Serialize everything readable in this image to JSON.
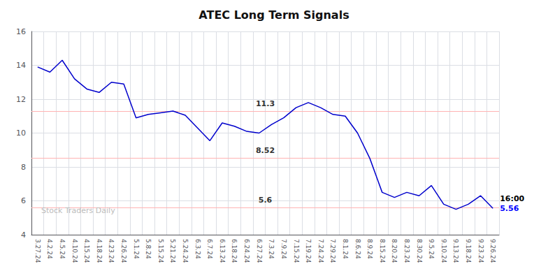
{
  "chart_data": {
    "type": "line",
    "title": "ATEC Long Term Signals",
    "categories": [
      "3.27.24",
      "4.2.24",
      "4.5.24",
      "4.10.24",
      "4.15.24",
      "4.18.24",
      "4.23.24",
      "4.26.24",
      "5.1.24",
      "5.8.24",
      "5.15.24",
      "5.21.24",
      "5.24.24",
      "6.3.24",
      "6.7.24",
      "6.13.24",
      "6.18.24",
      "6.24.24",
      "6.27.24",
      "7.3.24",
      "7.9.24",
      "7.15.24",
      "7.19.24",
      "7.24.24",
      "7.29.24",
      "8.1.24",
      "8.6.24",
      "8.9.24",
      "8.15.24",
      "8.20.24",
      "8.23.24",
      "8.30.24",
      "9.5.24",
      "9.10.24",
      "9.13.24",
      "9.18.24",
      "9.23.24",
      "9.26.24"
    ],
    "values": [
      13.9,
      13.6,
      14.3,
      13.2,
      12.6,
      12.4,
      13.0,
      12.9,
      10.9,
      11.1,
      11.2,
      11.3,
      11.05,
      10.3,
      9.55,
      10.6,
      10.4,
      10.1,
      10.0,
      10.5,
      10.9,
      11.5,
      11.8,
      11.5,
      11.1,
      11.0,
      10.0,
      8.5,
      6.5,
      6.2,
      6.5,
      6.3,
      6.9,
      5.8,
      5.5,
      5.8,
      6.3,
      5.56
    ],
    "color": "#0000cc",
    "ylim": [
      4,
      16
    ],
    "yticks": [
      4,
      6,
      8,
      10,
      12,
      14,
      16
    ],
    "grid": true,
    "reference_lines": [
      {
        "value": 11.3,
        "label": "11.3",
        "color": "#ffb3b3"
      },
      {
        "value": 8.52,
        "label": "8.52",
        "color": "#ffb3b3"
      },
      {
        "value": 5.6,
        "label": "5.6",
        "color": "#ffb3b3"
      }
    ],
    "annotations": [
      {
        "text": "16:00"
      },
      {
        "text": "5.56",
        "color": "#0000ff"
      }
    ],
    "watermark": {
      "text": "Stock Traders Daily",
      "color": "#bbbbbb"
    }
  }
}
